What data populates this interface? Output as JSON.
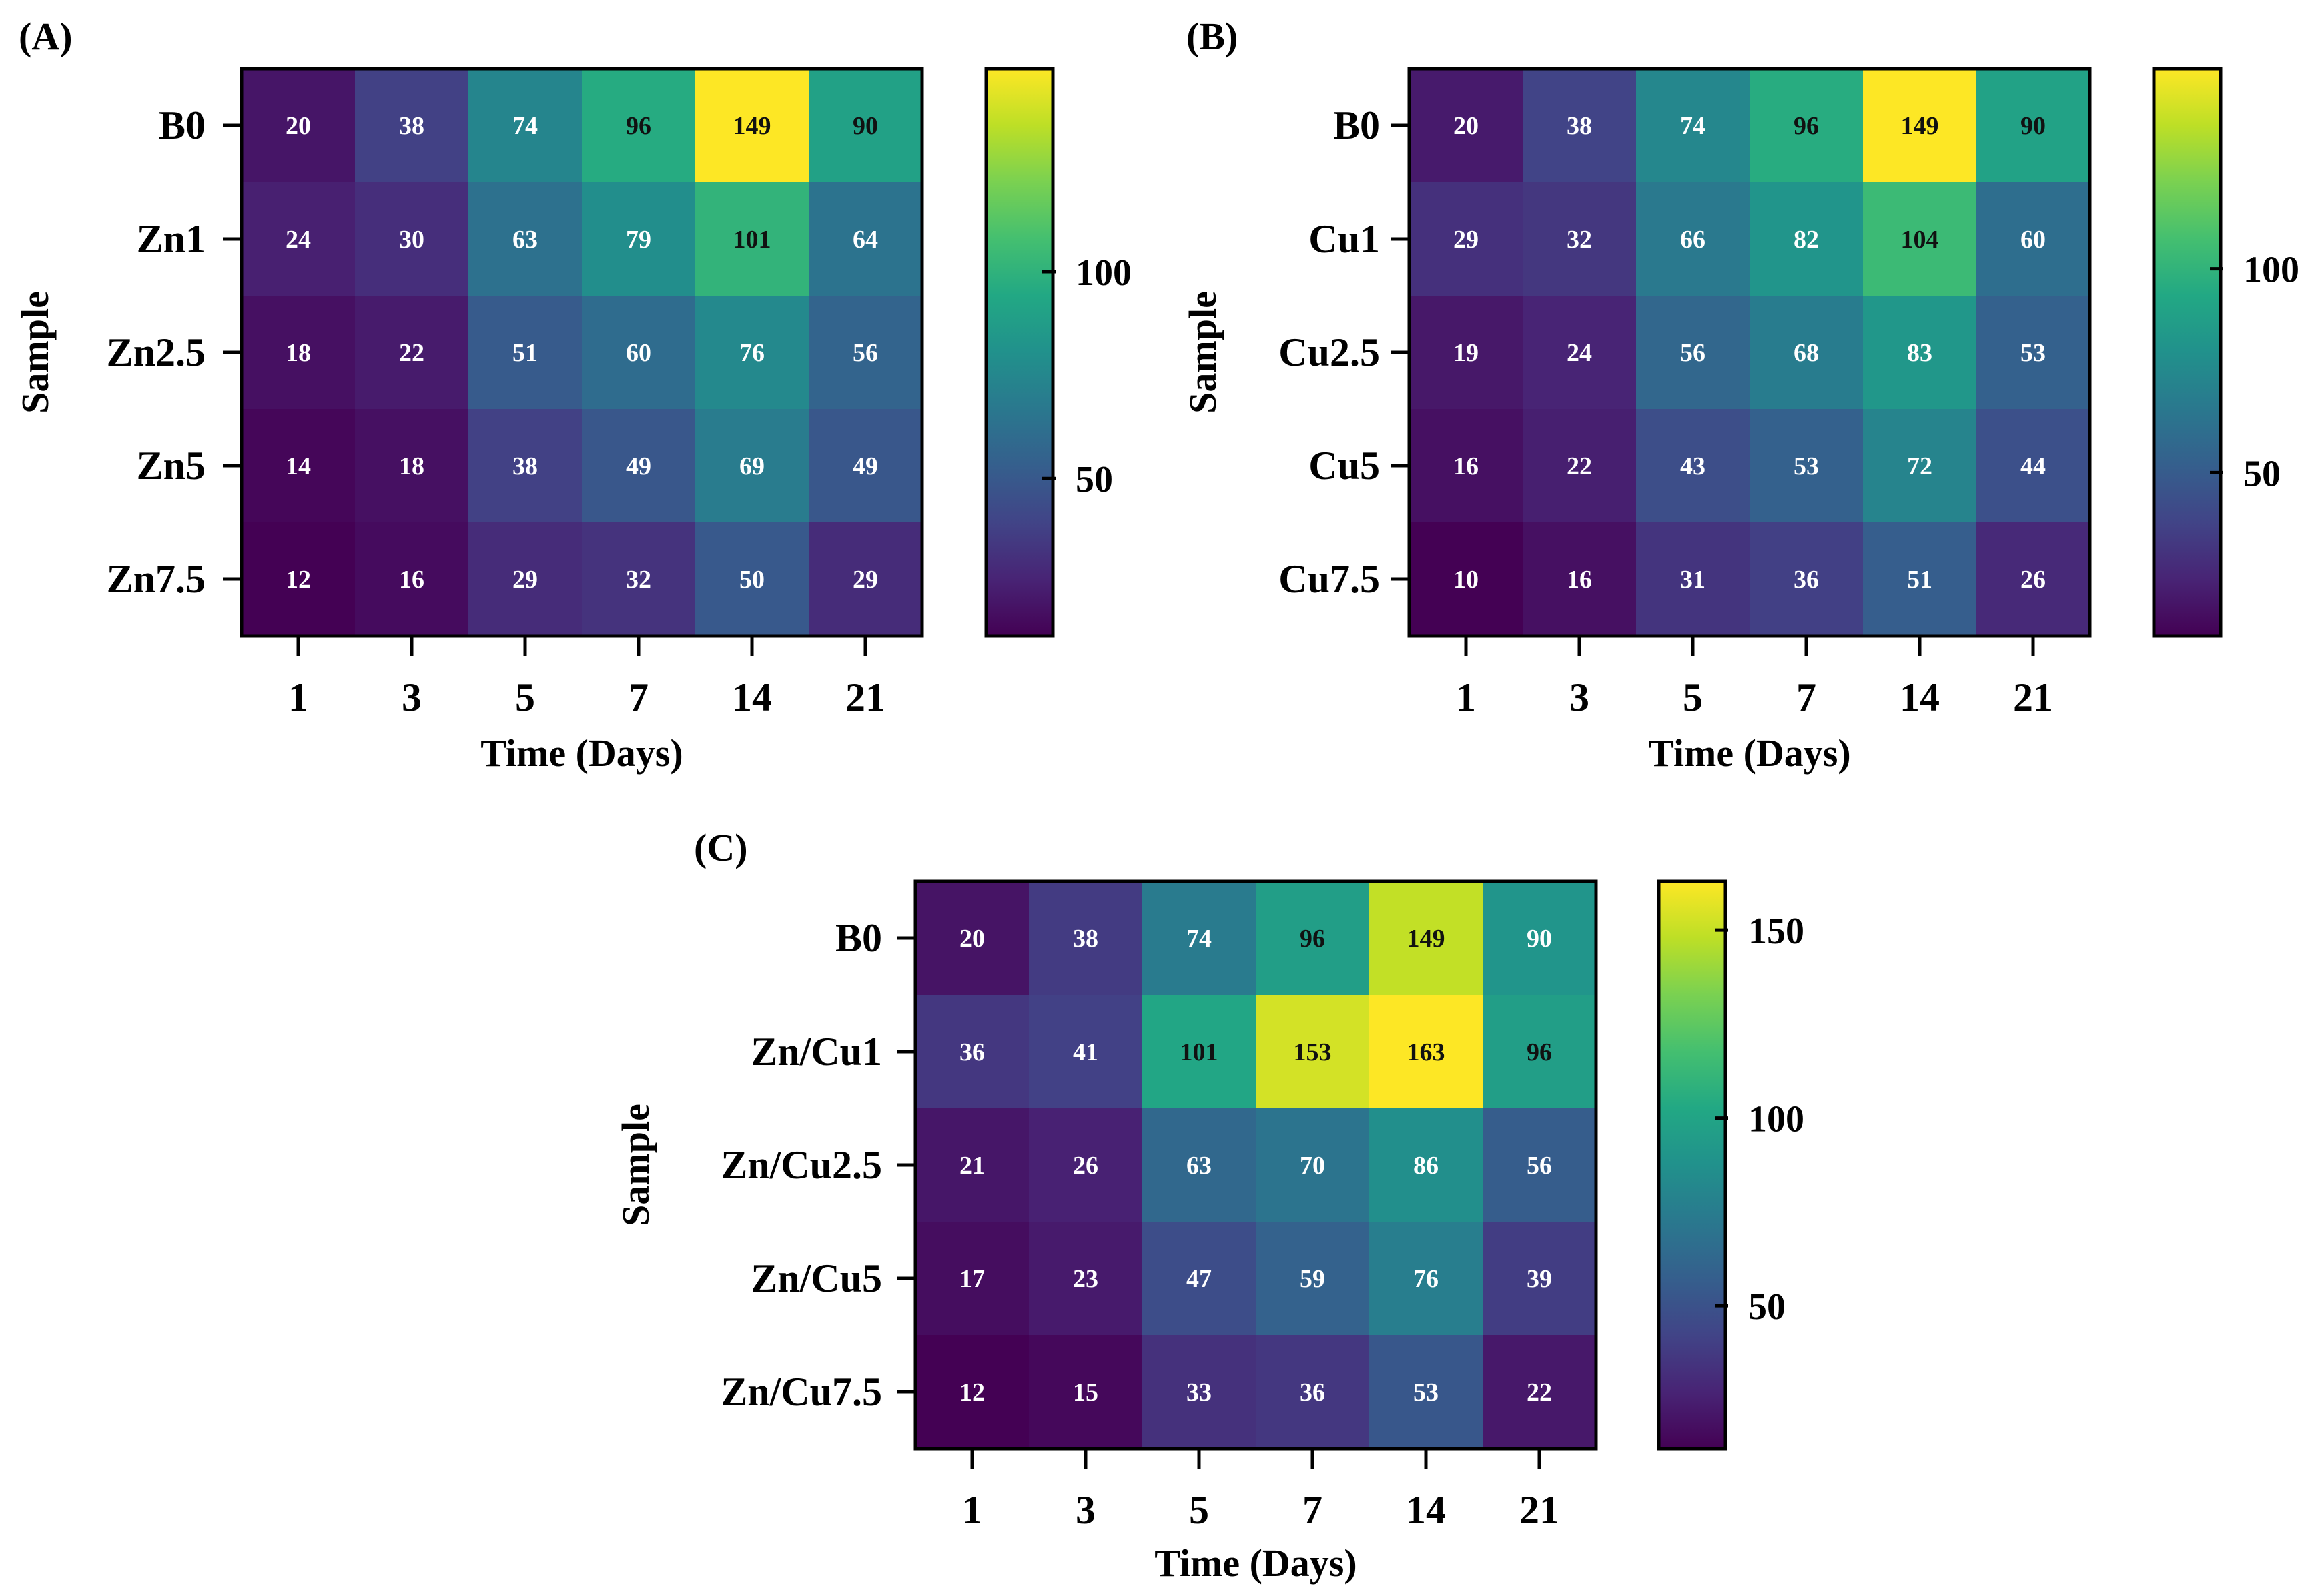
{
  "chart_data": [
    {
      "type": "heatmap",
      "panel_label": "(A)",
      "xlabel": "Time (Days)",
      "ylabel": "Sample",
      "categories_x": [
        "1",
        "3",
        "5",
        "7",
        "14",
        "21"
      ],
      "categories_y": [
        "B0",
        "Zn1",
        "Zn2.5",
        "Zn5",
        "Zn7.5"
      ],
      "values": [
        [
          20,
          38,
          74,
          96,
          149,
          90
        ],
        [
          24,
          30,
          63,
          79,
          101,
          64
        ],
        [
          18,
          22,
          51,
          60,
          76,
          56
        ],
        [
          14,
          18,
          38,
          49,
          69,
          49
        ],
        [
          12,
          16,
          29,
          32,
          50,
          29
        ]
      ],
      "colorbar": {
        "vmin": 12,
        "vmax": 149,
        "ticks": [
          50,
          100
        ],
        "colormap": "viridis"
      }
    },
    {
      "type": "heatmap",
      "panel_label": "(B)",
      "xlabel": "Time (Days)",
      "ylabel": "Sample",
      "categories_x": [
        "1",
        "3",
        "5",
        "7",
        "14",
        "21"
      ],
      "categories_y": [
        "B0",
        "Cu1",
        "Cu2.5",
        "Cu5",
        "Cu7.5"
      ],
      "values": [
        [
          20,
          38,
          74,
          96,
          149,
          90
        ],
        [
          29,
          32,
          66,
          82,
          104,
          60
        ],
        [
          19,
          24,
          56,
          68,
          83,
          53
        ],
        [
          16,
          22,
          43,
          53,
          72,
          44
        ],
        [
          10,
          16,
          31,
          36,
          51,
          26
        ]
      ],
      "colorbar": {
        "vmin": 10,
        "vmax": 149,
        "ticks": [
          50,
          100
        ],
        "colormap": "viridis"
      }
    },
    {
      "type": "heatmap",
      "panel_label": "(C)",
      "xlabel": "Time (Days)",
      "ylabel": "Sample",
      "categories_x": [
        "1",
        "3",
        "5",
        "7",
        "14",
        "21"
      ],
      "categories_y": [
        "B0",
        "Zn/Cu1",
        "Zn/Cu2.5",
        "Zn/Cu5",
        "Zn/Cu7.5"
      ],
      "values": [
        [
          20,
          38,
          74,
          96,
          149,
          90
        ],
        [
          36,
          41,
          101,
          153,
          163,
          96
        ],
        [
          21,
          26,
          63,
          70,
          86,
          56
        ],
        [
          17,
          23,
          47,
          59,
          76,
          39
        ],
        [
          12,
          15,
          33,
          36,
          53,
          22
        ]
      ],
      "colorbar": {
        "vmin": 12,
        "vmax": 163,
        "ticks": [
          50,
          100,
          150
        ],
        "colormap": "viridis"
      }
    }
  ]
}
